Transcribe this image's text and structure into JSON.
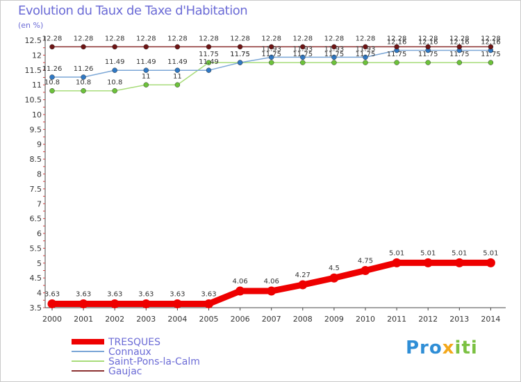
{
  "title": "Evolution du Taux de Taxe d'Habitation",
  "subtitle": "(en %)",
  "logo": {
    "part1": "Pro",
    "part2": "x",
    "part3": "iti"
  },
  "chart_data": {
    "type": "line",
    "x": [
      "2000",
      "2001",
      "2002",
      "2003",
      "2004",
      "2005",
      "2006",
      "2007",
      "2008",
      "2009",
      "2010",
      "2011",
      "2012",
      "2013",
      "2014"
    ],
    "ylim": [
      3.5,
      12.5
    ],
    "yticks": [
      3.5,
      4,
      4.5,
      5,
      5.5,
      6,
      6.5,
      7,
      7.5,
      8,
      8.5,
      9,
      9.5,
      10,
      10.5,
      11,
      11.5,
      12,
      12.5
    ],
    "grid": false,
    "legend_position": "bottom-left",
    "series": [
      {
        "name": "TRESQUES",
        "color": "#ee0000",
        "values": [
          3.63,
          3.63,
          3.63,
          3.63,
          3.63,
          3.63,
          4.06,
          4.06,
          4.27,
          4.5,
          4.75,
          5.01,
          5.01,
          5.01,
          5.01
        ],
        "labels": [
          "3.63",
          "3.63",
          "3.63",
          "3.63",
          "3.63",
          "3.63",
          "4.06",
          "4.06",
          "4.27",
          "4.5",
          "4.75",
          "5.01",
          "5.01",
          "5.01",
          "5.01"
        ]
      },
      {
        "name": "Connaux",
        "color": "#7aa6d6",
        "marker_color": "#2f78c4",
        "values": [
          11.26,
          11.26,
          11.49,
          11.49,
          11.49,
          11.49,
          11.75,
          11.93,
          11.93,
          11.93,
          11.93,
          12.16,
          12.16,
          12.16,
          12.16
        ],
        "labels": [
          "11.26",
          "11.26",
          "11.49",
          "11.49",
          "11.49",
          "11.49",
          "11.75",
          "11.93",
          "11.93",
          "11.93",
          "11.93",
          "12.16",
          "12.16",
          "12.16",
          "12.16"
        ]
      },
      {
        "name": "Saint-Pons-la-Calm",
        "color": "#a8dc7a",
        "marker_color": "#6cc23a",
        "values": [
          10.8,
          10.8,
          10.8,
          11,
          11,
          11.75,
          11.75,
          11.75,
          11.75,
          11.75,
          11.75,
          11.75,
          11.75,
          11.75,
          11.75
        ],
        "labels": [
          "10.8",
          "10.8",
          "10.8",
          "11",
          "11",
          "11.75",
          "11.75",
          "11.75",
          "11.75",
          "11.75",
          "11.75",
          "11.75",
          "11.75",
          "11.75",
          "11.75"
        ]
      },
      {
        "name": "Gaujac",
        "color": "#8b3030",
        "marker_color": "#6e1414",
        "values": [
          12.28,
          12.28,
          12.28,
          12.28,
          12.28,
          12.28,
          12.28,
          12.28,
          12.28,
          12.28,
          12.28,
          12.28,
          12.28,
          12.28,
          12.28
        ],
        "labels": [
          "12.28",
          "12.28",
          "12.28",
          "12.28",
          "12.28",
          "12.28",
          "12.28",
          "12.28",
          "12.28",
          "12.28",
          "12.28",
          "12.28",
          "12.28",
          "12.28",
          "12.28"
        ]
      }
    ]
  }
}
